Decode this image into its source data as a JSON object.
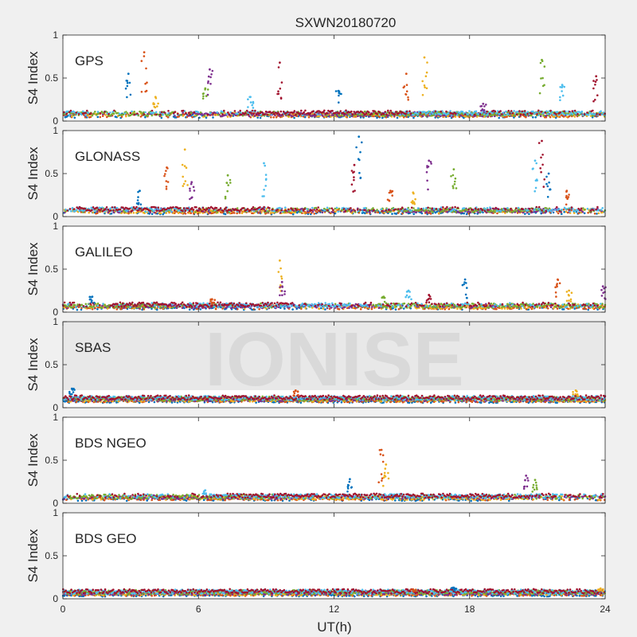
{
  "figure": {
    "title": "SXWN20180720",
    "xlabel": "UT(h)",
    "watermark": "IONISE"
  },
  "colors": {
    "background": "#f0f0f0",
    "axes_background": "#ffffff",
    "series": [
      "#0072BD",
      "#D95319",
      "#EDB120",
      "#7E2F8E",
      "#77AC30",
      "#4DBEEE",
      "#A2142F"
    ]
  },
  "chart_data": [
    {
      "type": "scatter",
      "panel": "GPS",
      "label": "GPS",
      "ylabel": "S4 Index",
      "xlim": [
        0,
        24
      ],
      "ylim": [
        0,
        1
      ],
      "xticks": [
        0,
        6,
        12,
        18,
        24
      ],
      "yticks": [
        0,
        0.5,
        1
      ],
      "baseline": 0.08,
      "spikes": [
        {
          "x": 2.9,
          "y": 0.55
        },
        {
          "x": 3.6,
          "y": 0.8
        },
        {
          "x": 4.1,
          "y": 0.28
        },
        {
          "x": 6.5,
          "y": 0.6
        },
        {
          "x": 6.3,
          "y": 0.38
        },
        {
          "x": 8.3,
          "y": 0.28
        },
        {
          "x": 9.6,
          "y": 0.68
        },
        {
          "x": 12.2,
          "y": 0.35
        },
        {
          "x": 15.2,
          "y": 0.55
        },
        {
          "x": 16.0,
          "y": 0.74
        },
        {
          "x": 18.6,
          "y": 0.2
        },
        {
          "x": 21.2,
          "y": 0.71
        },
        {
          "x": 22.1,
          "y": 0.42
        },
        {
          "x": 23.6,
          "y": 0.52
        }
      ]
    },
    {
      "type": "scatter",
      "panel": "GLONASS",
      "label": "GLONASS",
      "ylabel": "S4 Index",
      "xlim": [
        0,
        24
      ],
      "ylim": [
        0,
        1
      ],
      "xticks": [
        0,
        6,
        12,
        18,
        24
      ],
      "yticks": [
        0,
        0.5,
        1
      ],
      "baseline": 0.07,
      "spikes": [
        {
          "x": 3.4,
          "y": 0.3
        },
        {
          "x": 4.6,
          "y": 0.57
        },
        {
          "x": 5.4,
          "y": 0.78
        },
        {
          "x": 5.7,
          "y": 0.4
        },
        {
          "x": 7.3,
          "y": 0.48
        },
        {
          "x": 8.9,
          "y": 0.62
        },
        {
          "x": 12.9,
          "y": 0.6
        },
        {
          "x": 13.1,
          "y": 0.93
        },
        {
          "x": 14.5,
          "y": 0.3
        },
        {
          "x": 15.5,
          "y": 0.28
        },
        {
          "x": 16.2,
          "y": 0.65
        },
        {
          "x": 17.3,
          "y": 0.55
        },
        {
          "x": 20.9,
          "y": 0.65
        },
        {
          "x": 21.2,
          "y": 0.88
        },
        {
          "x": 21.5,
          "y": 0.5
        },
        {
          "x": 22.3,
          "y": 0.3
        }
      ]
    },
    {
      "type": "scatter",
      "panel": "GALILEO",
      "label": "GALILEO",
      "ylabel": "S4 Index",
      "xlim": [
        0,
        24
      ],
      "ylim": [
        0,
        1
      ],
      "xticks": [
        0,
        6,
        12,
        18,
        24
      ],
      "yticks": [
        0,
        0.5,
        1
      ],
      "baseline": 0.07,
      "spikes": [
        {
          "x": 1.3,
          "y": 0.18
        },
        {
          "x": 6.6,
          "y": 0.15
        },
        {
          "x": 9.6,
          "y": 0.6
        },
        {
          "x": 9.7,
          "y": 0.35
        },
        {
          "x": 14.2,
          "y": 0.18
        },
        {
          "x": 15.3,
          "y": 0.25
        },
        {
          "x": 16.2,
          "y": 0.2
        },
        {
          "x": 17.8,
          "y": 0.38
        },
        {
          "x": 21.9,
          "y": 0.38
        },
        {
          "x": 22.4,
          "y": 0.25
        },
        {
          "x": 23.9,
          "y": 0.3
        }
      ]
    },
    {
      "type": "scatter",
      "panel": "SBAS",
      "label": "SBAS",
      "ylabel": "S4 Index",
      "xlim": [
        0,
        24
      ],
      "ylim": [
        0,
        1
      ],
      "xticks": [
        0,
        6,
        12,
        18,
        24
      ],
      "yticks": [
        0,
        0.5,
        1
      ],
      "baseline": 0.1,
      "spikes": [
        {
          "x": 0.4,
          "y": 0.22
        },
        {
          "x": 10.3,
          "y": 0.2
        },
        {
          "x": 22.7,
          "y": 0.2
        }
      ]
    },
    {
      "type": "scatter",
      "panel": "BDS NGEO",
      "label": "BDS NGEO",
      "ylabel": "S4 Index",
      "xlim": [
        0,
        24
      ],
      "ylim": [
        0,
        1
      ],
      "xticks": [
        0,
        6,
        12,
        18,
        24
      ],
      "yticks": [
        0,
        0.5,
        1
      ],
      "baseline": 0.07,
      "spikes": [
        {
          "x": 12.7,
          "y": 0.28
        },
        {
          "x": 14.1,
          "y": 0.62
        },
        {
          "x": 14.3,
          "y": 0.45
        },
        {
          "x": 20.5,
          "y": 0.32
        },
        {
          "x": 20.9,
          "y": 0.27
        },
        {
          "x": 6.3,
          "y": 0.15
        }
      ]
    },
    {
      "type": "scatter",
      "panel": "BDS GEO",
      "label": "BDS GEO",
      "ylabel": "S4 Index",
      "xlim": [
        0,
        24
      ],
      "ylim": [
        0,
        1
      ],
      "xticks": [
        0,
        6,
        12,
        18,
        24
      ],
      "yticks": [
        0,
        0.5,
        1
      ],
      "baseline": 0.07,
      "spikes": [
        {
          "x": 17.3,
          "y": 0.13
        },
        {
          "x": 15.5,
          "y": 0.11
        },
        {
          "x": 23.8,
          "y": 0.12
        }
      ]
    }
  ]
}
